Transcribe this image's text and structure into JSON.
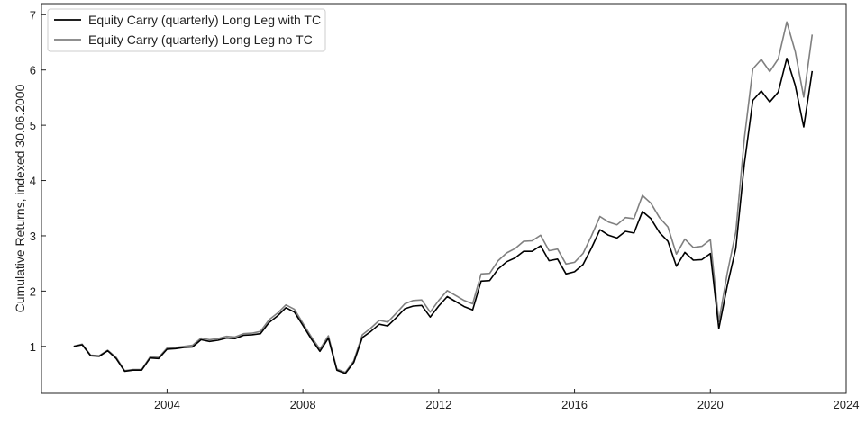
{
  "chart_data": {
    "type": "line",
    "title": "",
    "xlabel": "",
    "ylabel": "Cumulative Returns, indexed 30.06.2000",
    "xlim": [
      2000.3,
      2024.0
    ],
    "ylim": [
      0.15,
      7.2
    ],
    "xticks": [
      2004,
      2008,
      2012,
      2016,
      2020,
      2024
    ],
    "xtick_labels": [
      "2004",
      "2008",
      "2012",
      "2016",
      "2020",
      "2024"
    ],
    "yticks": [
      1,
      2,
      3,
      4,
      5,
      6,
      7
    ],
    "ytick_labels": [
      "1",
      "2",
      "3",
      "4",
      "5",
      "6",
      "7"
    ],
    "grid": false,
    "legend_position": "top-left",
    "series": [
      {
        "name": "Equity Carry (quarterly) Long Leg with TC",
        "color": "#000000",
        "x": [
          2001.25,
          2001.5,
          2001.75,
          2002.0,
          2002.25,
          2002.5,
          2002.75,
          2003.0,
          2003.25,
          2003.5,
          2003.75,
          2004.0,
          2004.25,
          2004.5,
          2004.75,
          2005.0,
          2005.25,
          2005.5,
          2005.75,
          2006.0,
          2006.25,
          2006.5,
          2006.75,
          2007.0,
          2007.25,
          2007.5,
          2007.75,
          2008.0,
          2008.25,
          2008.5,
          2008.75,
          2009.0,
          2009.25,
          2009.5,
          2009.75,
          2010.0,
          2010.25,
          2010.5,
          2010.75,
          2011.0,
          2011.25,
          2011.5,
          2011.75,
          2012.0,
          2012.25,
          2012.5,
          2012.75,
          2013.0,
          2013.25,
          2013.5,
          2013.75,
          2014.0,
          2014.25,
          2014.5,
          2014.75,
          2015.0,
          2015.25,
          2015.5,
          2015.75,
          2016.0,
          2016.25,
          2016.5,
          2016.75,
          2017.0,
          2017.25,
          2017.5,
          2017.75,
          2018.0,
          2018.25,
          2018.5,
          2018.75,
          2019.0,
          2019.25,
          2019.5,
          2019.75,
          2020.0,
          2020.25,
          2020.5,
          2020.75,
          2021.0,
          2021.25,
          2021.5,
          2021.75,
          2022.0,
          2022.25,
          2022.5,
          2022.75,
          2023.0
        ],
        "values": [
          1.0,
          1.03,
          0.83,
          0.82,
          0.92,
          0.78,
          0.55,
          0.57,
          0.57,
          0.79,
          0.78,
          0.95,
          0.96,
          0.98,
          0.99,
          1.12,
          1.09,
          1.11,
          1.15,
          1.14,
          1.2,
          1.21,
          1.23,
          1.43,
          1.55,
          1.7,
          1.62,
          1.38,
          1.13,
          0.91,
          1.15,
          0.57,
          0.51,
          0.71,
          1.16,
          1.27,
          1.4,
          1.37,
          1.52,
          1.68,
          1.73,
          1.74,
          1.53,
          1.73,
          1.9,
          1.81,
          1.72,
          1.66,
          2.18,
          2.19,
          2.4,
          2.53,
          2.6,
          2.72,
          2.72,
          2.82,
          2.55,
          2.58,
          2.31,
          2.35,
          2.48,
          2.78,
          3.11,
          3.01,
          2.96,
          3.08,
          3.05,
          3.44,
          3.31,
          3.06,
          2.9,
          2.45,
          2.7,
          2.56,
          2.57,
          2.68,
          1.32,
          2.1,
          2.77,
          4.3,
          5.45,
          5.62,
          5.42,
          5.6,
          6.21,
          5.72,
          4.97,
          5.98
        ]
      },
      {
        "name": "Equity Carry (quarterly) Long Leg no TC",
        "color": "#808080",
        "x": [
          2001.25,
          2001.5,
          2001.75,
          2002.0,
          2002.25,
          2002.5,
          2002.75,
          2003.0,
          2003.25,
          2003.5,
          2003.75,
          2004.0,
          2004.25,
          2004.5,
          2004.75,
          2005.0,
          2005.25,
          2005.5,
          2005.75,
          2006.0,
          2006.25,
          2006.5,
          2006.75,
          2007.0,
          2007.25,
          2007.5,
          2007.75,
          2008.0,
          2008.25,
          2008.5,
          2008.75,
          2009.0,
          2009.25,
          2009.5,
          2009.75,
          2010.0,
          2010.25,
          2010.5,
          2010.75,
          2011.0,
          2011.25,
          2011.5,
          2011.75,
          2012.0,
          2012.25,
          2012.5,
          2012.75,
          2013.0,
          2013.25,
          2013.5,
          2013.75,
          2014.0,
          2014.25,
          2014.5,
          2014.75,
          2015.0,
          2015.25,
          2015.5,
          2015.75,
          2016.0,
          2016.25,
          2016.5,
          2016.75,
          2017.0,
          2017.25,
          2017.5,
          2017.75,
          2018.0,
          2018.25,
          2018.5,
          2018.75,
          2019.0,
          2019.25,
          2019.5,
          2019.75,
          2020.0,
          2020.25,
          2020.5,
          2020.75,
          2021.0,
          2021.25,
          2021.5,
          2021.75,
          2022.0,
          2022.25,
          2022.5,
          2022.75,
          2023.0
        ],
        "values": [
          1.0,
          1.04,
          0.84,
          0.83,
          0.93,
          0.8,
          0.56,
          0.58,
          0.58,
          0.81,
          0.8,
          0.97,
          0.98,
          1.0,
          1.02,
          1.15,
          1.12,
          1.14,
          1.18,
          1.17,
          1.23,
          1.24,
          1.27,
          1.48,
          1.6,
          1.75,
          1.67,
          1.42,
          1.17,
          0.95,
          1.19,
          0.59,
          0.53,
          0.74,
          1.21,
          1.33,
          1.47,
          1.44,
          1.6,
          1.77,
          1.83,
          1.84,
          1.62,
          1.83,
          2.01,
          1.92,
          1.83,
          1.77,
          2.31,
          2.32,
          2.55,
          2.69,
          2.77,
          2.9,
          2.91,
          3.01,
          2.73,
          2.76,
          2.49,
          2.52,
          2.68,
          3.0,
          3.35,
          3.25,
          3.2,
          3.33,
          3.31,
          3.73,
          3.59,
          3.33,
          3.16,
          2.67,
          2.94,
          2.79,
          2.81,
          2.93,
          1.45,
          2.33,
          3.07,
          4.76,
          6.02,
          6.19,
          5.97,
          6.2,
          6.87,
          6.33,
          5.51,
          6.64
        ]
      }
    ]
  }
}
